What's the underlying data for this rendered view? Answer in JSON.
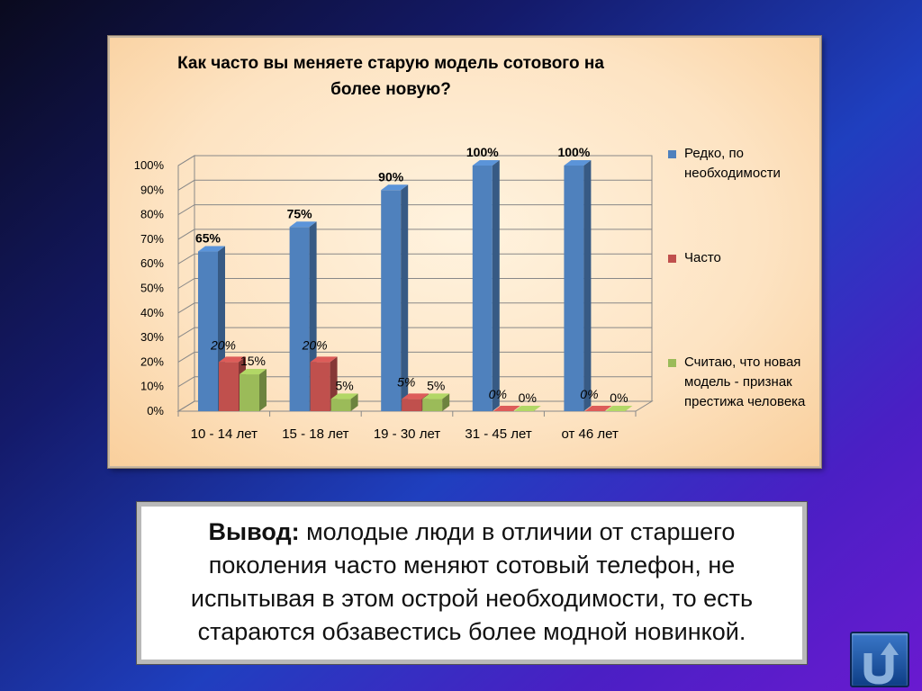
{
  "chart_data": {
    "type": "bar",
    "title": "Как часто вы меняете старую модель сотового на более новую?",
    "categories": [
      "10 - 14 лет",
      "15 - 18 лет",
      "19 - 30 лет",
      "31 - 45 лет",
      "от 46 лет"
    ],
    "series": [
      {
        "name": "Редко, по необходимости",
        "values": [
          65,
          75,
          90,
          100,
          100
        ],
        "color": "#4f81bd",
        "labels": [
          "65%",
          "75%",
          "90%",
          "100%",
          "100%"
        ]
      },
      {
        "name": "Часто",
        "values": [
          20,
          20,
          5,
          0,
          0
        ],
        "color": "#c0504d",
        "labels": [
          "20%",
          "20%",
          "5%",
          "0%",
          "0%"
        ]
      },
      {
        "name": "Считаю, что новая модель - признак престижа человека",
        "values": [
          15,
          5,
          5,
          0,
          0
        ],
        "color": "#9bbb59",
        "labels": [
          "15%",
          "5%",
          "5%",
          "0%",
          "0%"
        ]
      }
    ],
    "ylim": [
      0,
      100
    ],
    "yticks": [
      "0%",
      "10%",
      "20%",
      "30%",
      "40%",
      "50%",
      "60%",
      "70%",
      "80%",
      "90%",
      "100%"
    ],
    "legend_position": "right",
    "grid": true,
    "style": "3d-clustered-column"
  },
  "conclusion": {
    "bold": "Вывод:",
    "text": " молодые люди в отличии от старшего поколения часто меняют сотовый телефон, не испытывая в этом острой необходимости, то есть стараются обзавестись более модной новинкой."
  },
  "nav_button": {
    "icon": "return-arrow-icon"
  }
}
